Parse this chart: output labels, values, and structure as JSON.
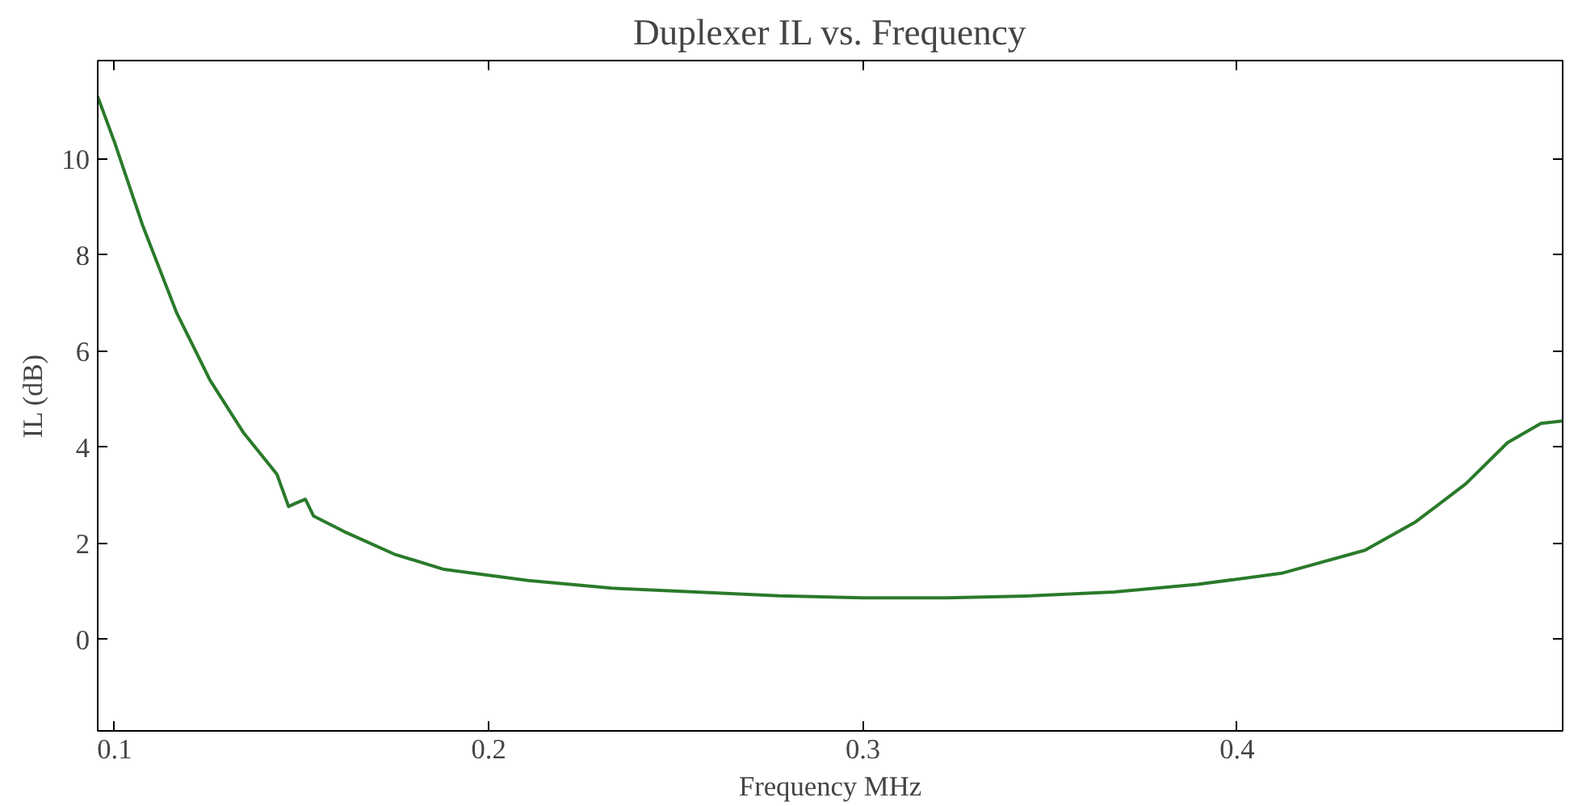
{
  "chart_data": {
    "type": "line",
    "title": "Duplexer IL vs. Frequency",
    "xlabel": "Frequency MHz",
    "ylabel": "IL (dB)",
    "xlim": [
      0.0955,
      0.487
    ],
    "ylim": [
      -1.9,
      12.05
    ],
    "xticks": [
      0.1,
      0.2,
      0.3,
      0.4
    ],
    "yticks": [
      0,
      2,
      4,
      6,
      8,
      10
    ],
    "grid": false,
    "series": [
      {
        "color": "#2a7a2a",
        "x": [
          0.0955,
          0.1,
          0.1076,
          0.1166,
          0.1255,
          0.1345,
          0.1434,
          0.1465,
          0.1488,
          0.151,
          0.1532,
          0.1613,
          0.1747,
          0.1881,
          0.2105,
          0.2329,
          0.2553,
          0.2776,
          0.3,
          0.3224,
          0.3447,
          0.3671,
          0.3895,
          0.4119,
          0.4342,
          0.4477,
          0.4611,
          0.4723,
          0.4812,
          0.487
        ],
        "values": [
          11.3,
          10.35,
          8.6,
          6.8,
          5.4,
          4.3,
          3.44,
          2.77,
          2.85,
          2.92,
          2.57,
          2.25,
          1.78,
          1.46,
          1.23,
          1.07,
          0.99,
          0.91,
          0.87,
          0.87,
          0.91,
          0.99,
          1.15,
          1.38,
          1.86,
          2.45,
          3.24,
          4.1,
          4.5,
          4.55
        ]
      }
    ]
  }
}
